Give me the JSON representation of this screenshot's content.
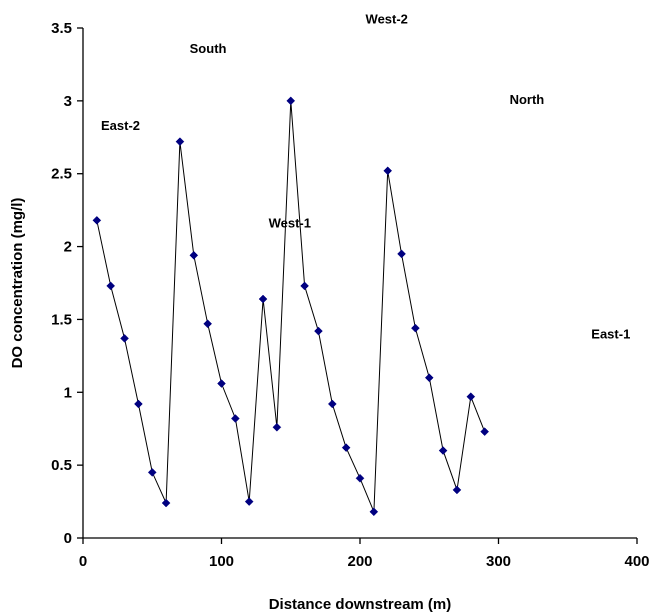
{
  "chart_data": {
    "type": "line",
    "xlabel": "Distance downstream (m)",
    "ylabel": "DO concentration  (mg/l)",
    "xlim": [
      0,
      400
    ],
    "ylim": [
      0,
      3.5
    ],
    "xticks": [
      0,
      100,
      200,
      300,
      400
    ],
    "yticks": [
      0,
      0.5,
      1,
      1.5,
      2,
      2.5,
      3,
      3.5
    ],
    "xtick_labels": [
      "0",
      "100",
      "200",
      "300",
      "400"
    ],
    "ytick_labels": [
      "0",
      "0.5",
      "1",
      "1.5",
      "2",
      "2.5",
      "3",
      "3.5"
    ],
    "grid": false,
    "legend": "none",
    "marker_color": "#000080",
    "line_color": "#000000",
    "series": [
      {
        "x": [
          10,
          20,
          30,
          40,
          50,
          60,
          70,
          80,
          90,
          100,
          110,
          120,
          130,
          140,
          150,
          160,
          170,
          180,
          190,
          200,
          210,
          220,
          230,
          240,
          250,
          260,
          270,
          280,
          290
        ],
        "y": [
          2.18,
          1.73,
          1.37,
          0.92,
          0.45,
          0.24,
          2.72,
          1.94,
          1.47,
          1.06,
          0.82,
          0.25,
          1.64,
          0.76,
          3.0,
          1.73,
          1.42,
          0.92,
          0.62,
          0.41,
          0.18,
          2.52,
          1.95,
          1.44,
          1.1,
          0.6,
          0.33,
          0.97,
          0.73
        ]
      }
    ],
    "annotations": [
      {
        "text": "West-2",
        "x": 204,
        "y": 3.53
      },
      {
        "text": "South",
        "x": 77,
        "y": 3.33
      },
      {
        "text": "North",
        "x": 308,
        "y": 2.98
      },
      {
        "text": "East-2",
        "x": 13,
        "y": 2.8
      },
      {
        "text": "West-1",
        "x": 134,
        "y": 2.13
      },
      {
        "text": "East-1",
        "x": 367,
        "y": 1.37
      }
    ]
  }
}
